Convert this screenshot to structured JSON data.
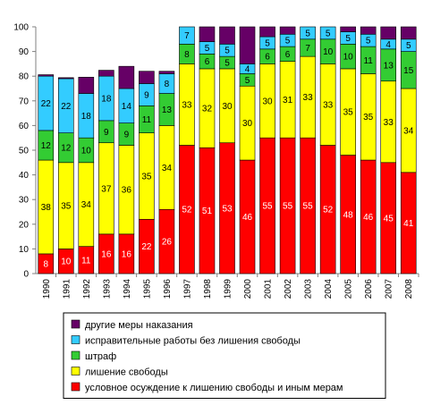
{
  "chart_data": {
    "type": "bar",
    "stacked": true,
    "categories": [
      "1990",
      "1991",
      "1992",
      "1993",
      "1994",
      "1995",
      "1996",
      "1997",
      "1998",
      "1999",
      "2000",
      "2001",
      "2002",
      "2003",
      "2004",
      "2005",
      "2006",
      "2007",
      "2008"
    ],
    "ylim": [
      0,
      100
    ],
    "yticks": [
      0,
      10,
      20,
      30,
      40,
      50,
      60,
      70,
      80,
      90,
      100
    ],
    "grid": false,
    "legend_position": "bottom",
    "series": [
      {
        "name": "условное осуждение к лишению свободы и иным мерам",
        "color": "#FF0000",
        "label_color": "#ffffff",
        "values": [
          8,
          10,
          11,
          16,
          16,
          22,
          26,
          52,
          51,
          53,
          46,
          55,
          55,
          55,
          52,
          48,
          46,
          45,
          41
        ]
      },
      {
        "name": "лишение свободы",
        "color": "#FFFF00",
        "label_color": "#000000",
        "values": [
          38,
          35,
          34,
          37,
          36,
          35,
          34,
          33,
          32,
          30,
          30,
          30,
          31,
          33,
          33,
          35,
          35,
          33,
          34
        ]
      },
      {
        "name": "штраф",
        "color": "#33CC33",
        "label_color": "#000000",
        "values": [
          12,
          12,
          10,
          9,
          9,
          11,
          13,
          8,
          6,
          5,
          5,
          6,
          6,
          7,
          10,
          10,
          11,
          13,
          15
        ]
      },
      {
        "name": "исправительные работы без лишения свободы",
        "color": "#33CCFF",
        "label_color": "#000000",
        "values": [
          22,
          22,
          18,
          18,
          14,
          9,
          8,
          7,
          5,
          5,
          4,
          5,
          5,
          5,
          5,
          5,
          5,
          4,
          5
        ]
      },
      {
        "name": "другие меры наказания",
        "color": "#660066",
        "label_color": "#000000",
        "values": [
          0.6,
          0.4,
          6.6,
          2.4,
          9,
          5,
          1,
          0,
          6,
          7,
          15,
          4,
          3,
          0,
          0,
          2,
          3,
          5,
          5
        ]
      }
    ]
  }
}
